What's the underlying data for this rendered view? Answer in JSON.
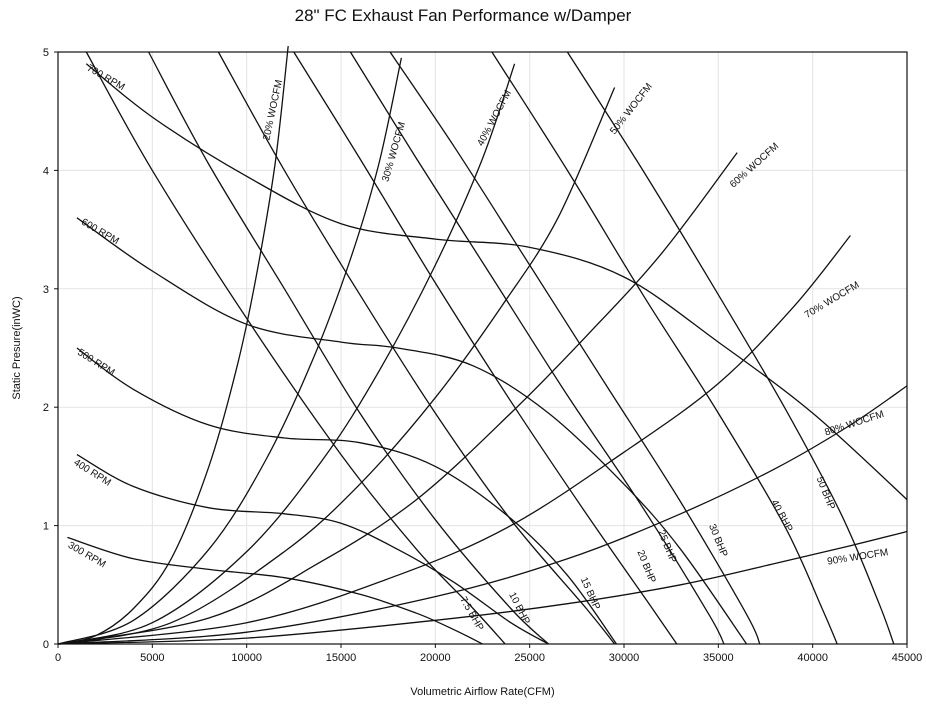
{
  "chart_data": {
    "type": "line",
    "title": "28\" FC Exhaust Fan Performance w/Damper",
    "xlabel": "Volumetric Airflow Rate(CFM)",
    "ylabel": "Static Presure(inWC)",
    "xlim": [
      0,
      45000
    ],
    "ylim": [
      0,
      5
    ],
    "xticks": [
      0,
      5000,
      10000,
      15000,
      20000,
      25000,
      30000,
      35000,
      40000,
      45000
    ],
    "yticks": [
      0,
      1,
      2,
      3,
      4,
      5
    ],
    "grid": true,
    "legend": "none (curves labeled inline)",
    "series": [
      {
        "name": "300 RPM",
        "group": "rpm",
        "x": [
          500,
          4000,
          8000,
          12000,
          16000,
          19000,
          21000,
          22500
        ],
        "y": [
          0.9,
          0.72,
          0.63,
          0.56,
          0.42,
          0.26,
          0.12,
          0
        ]
      },
      {
        "name": "400 RPM",
        "group": "rpm",
        "x": [
          1000,
          4000,
          8000,
          12000,
          15000,
          18000,
          21000,
          24000,
          26000
        ],
        "y": [
          1.6,
          1.33,
          1.15,
          1.1,
          1.02,
          0.8,
          0.52,
          0.18,
          0
        ]
      },
      {
        "name": "500 RPM",
        "group": "rpm",
        "x": [
          1000,
          4000,
          8000,
          12000,
          16000,
          20000,
          24000,
          27000,
          29600
        ],
        "y": [
          2.5,
          2.15,
          1.85,
          1.74,
          1.7,
          1.5,
          1.06,
          0.58,
          0
        ]
      },
      {
        "name": "600 RPM",
        "group": "rpm",
        "x": [
          1000,
          5000,
          10000,
          15000,
          18000,
          22000,
          26000,
          30000,
          33000,
          36500
        ],
        "y": [
          3.6,
          3.15,
          2.7,
          2.55,
          2.5,
          2.35,
          1.95,
          1.35,
          0.8,
          0
        ]
      },
      {
        "name": "700 RPM",
        "group": "rpm",
        "x": [
          1500,
          5000,
          10000,
          15000,
          20000,
          25000,
          30000,
          35000,
          40000,
          45000
        ],
        "y": [
          4.9,
          4.45,
          3.95,
          3.55,
          3.42,
          3.35,
          3.1,
          2.55,
          1.95,
          1.22
        ]
      },
      {
        "name": "20% WOCFM",
        "group": "system",
        "x": [
          0,
          2000,
          4000,
          6000,
          8000,
          9500,
          10500,
          11500,
          12200
        ],
        "y": [
          0,
          0.07,
          0.3,
          0.72,
          1.5,
          2.35,
          3.1,
          4.05,
          5.05
        ]
      },
      {
        "name": "30% WOCFM",
        "group": "system",
        "x": [
          0,
          4000,
          8000,
          11000,
          13500,
          15500,
          17000,
          18200
        ],
        "y": [
          0,
          0.2,
          0.8,
          1.55,
          2.4,
          3.25,
          4.05,
          4.95
        ]
      },
      {
        "name": "40% WOCFM",
        "group": "system",
        "x": [
          0,
          5000,
          10000,
          14000,
          17000,
          20000,
          22500,
          24200
        ],
        "y": [
          0,
          0.18,
          0.78,
          1.55,
          2.3,
          3.2,
          4.1,
          4.9
        ]
      },
      {
        "name": "50% WOCFM",
        "group": "system",
        "x": [
          0,
          6000,
          12000,
          16000,
          20000,
          23500,
          26500,
          29500
        ],
        "y": [
          0,
          0.18,
          0.78,
          1.35,
          2.08,
          2.85,
          3.6,
          4.7
        ]
      },
      {
        "name": "60% WOCFM",
        "group": "system",
        "x": [
          0,
          8000,
          14000,
          19000,
          24000,
          28000,
          32000,
          36000
        ],
        "y": [
          0,
          0.22,
          0.7,
          1.22,
          1.95,
          2.6,
          3.3,
          4.15
        ]
      },
      {
        "name": "70% WOCFM",
        "group": "system",
        "x": [
          0,
          10000,
          18000,
          24000,
          30000,
          35000,
          39000,
          42000
        ],
        "y": [
          0,
          0.18,
          0.58,
          1.0,
          1.62,
          2.2,
          2.85,
          3.45
        ]
      },
      {
        "name": "80% WOCFM",
        "group": "system",
        "x": [
          0,
          10000,
          20000,
          27000,
          33000,
          38000,
          42000,
          45000
        ],
        "y": [
          0,
          0.1,
          0.4,
          0.72,
          1.1,
          1.48,
          1.85,
          2.18
        ]
      },
      {
        "name": "90% WOCFM",
        "group": "system",
        "x": [
          0,
          10000,
          20000,
          27000,
          33000,
          38000,
          42000,
          45000
        ],
        "y": [
          0,
          0.05,
          0.2,
          0.34,
          0.5,
          0.68,
          0.83,
          0.95
        ]
      },
      {
        "name": "7.5 BHP",
        "group": "power",
        "x": [
          1500,
          5000,
          10000,
          15000,
          19000,
          22000,
          23700
        ],
        "y": [
          5.0,
          4.0,
          2.75,
          1.6,
          0.8,
          0.3,
          0
        ]
      },
      {
        "name": "10 BHP",
        "group": "power",
        "x": [
          4800,
          8000,
          12000,
          16000,
          20000,
          24000,
          26000
        ],
        "y": [
          5.0,
          4.05,
          3.0,
          1.95,
          1.05,
          0.3,
          0
        ]
      },
      {
        "name": "15 BHP",
        "group": "power",
        "x": [
          8500,
          12000,
          16000,
          20000,
          24000,
          28000,
          29500
        ],
        "y": [
          5.0,
          4.0,
          2.95,
          1.95,
          1.05,
          0.3,
          0
        ]
      },
      {
        "name": "20 BHP",
        "group": "power",
        "x": [
          12500,
          16000,
          20000,
          24000,
          28000,
          31500,
          32800
        ],
        "y": [
          5.0,
          4.1,
          3.05,
          2.05,
          1.1,
          0.3,
          0
        ]
      },
      {
        "name": "25 BHP",
        "group": "power",
        "x": [
          15500,
          19000,
          23000,
          27000,
          31000,
          34500,
          35300
        ],
        "y": [
          5.0,
          4.1,
          3.1,
          2.1,
          1.15,
          0.25,
          0
        ]
      },
      {
        "name": "30 BHP",
        "group": "power",
        "x": [
          17600,
          21000,
          25000,
          29000,
          33000,
          36500,
          37200
        ],
        "y": [
          5.0,
          4.2,
          3.2,
          2.2,
          1.2,
          0.25,
          0
        ]
      },
      {
        "name": "40 BHP",
        "group": "power",
        "x": [
          23000,
          27000,
          31000,
          35000,
          38500,
          40500,
          41300
        ],
        "y": [
          5.0,
          4.0,
          2.95,
          1.95,
          1.0,
          0.3,
          0
        ]
      },
      {
        "name": "50 BHP",
        "group": "power",
        "x": [
          27000,
          31000,
          35000,
          38500,
          41500,
          43500,
          44300
        ],
        "y": [
          5.0,
          4.0,
          2.95,
          2.0,
          1.1,
          0.35,
          0
        ]
      }
    ],
    "curve_labels": [
      {
        "text": "700 RPM",
        "x": 1500,
        "y": 4.85,
        "angle": 30
      },
      {
        "text": "600 RPM",
        "x": 1200,
        "y": 3.55,
        "angle": 30
      },
      {
        "text": "500 RPM",
        "x": 1000,
        "y": 2.45,
        "angle": 32
      },
      {
        "text": "400 RPM",
        "x": 800,
        "y": 1.52,
        "angle": 32
      },
      {
        "text": "300 RPM",
        "x": 500,
        "y": 0.82,
        "angle": 30
      },
      {
        "text": "20% WOCFM",
        "x": 11200,
        "y": 4.25,
        "angle": -78
      },
      {
        "text": "30% WOCFM",
        "x": 17500,
        "y": 3.9,
        "angle": -74
      },
      {
        "text": "40% WOCFM",
        "x": 22500,
        "y": 4.2,
        "angle": -62
      },
      {
        "text": "50% WOCFM",
        "x": 29500,
        "y": 4.3,
        "angle": -52
      },
      {
        "text": "60% WOCFM",
        "x": 35800,
        "y": 3.85,
        "angle": -42
      },
      {
        "text": "70% WOCFM",
        "x": 39700,
        "y": 2.75,
        "angle": -31
      },
      {
        "text": "80% WOCFM",
        "x": 40700,
        "y": 1.76,
        "angle": -18
      },
      {
        "text": "90% WOCFM",
        "x": 40800,
        "y": 0.67,
        "angle": -9
      },
      {
        "text": "7.5 BHP",
        "x": 21300,
        "y": 0.38,
        "angle": 60
      },
      {
        "text": "10 BHP",
        "x": 23900,
        "y": 0.42,
        "angle": 63
      },
      {
        "text": "15 BHP",
        "x": 27700,
        "y": 0.55,
        "angle": 66
      },
      {
        "text": "20 BHP",
        "x": 30700,
        "y": 0.78,
        "angle": 68
      },
      {
        "text": "25 BHP",
        "x": 31800,
        "y": 0.95,
        "angle": 68
      },
      {
        "text": "30 BHP",
        "x": 34500,
        "y": 1.0,
        "angle": 68
      },
      {
        "text": "40 BHP",
        "x": 37800,
        "y": 1.2,
        "angle": 62
      },
      {
        "text": "50 BHP",
        "x": 40200,
        "y": 1.4,
        "angle": 68
      }
    ]
  }
}
